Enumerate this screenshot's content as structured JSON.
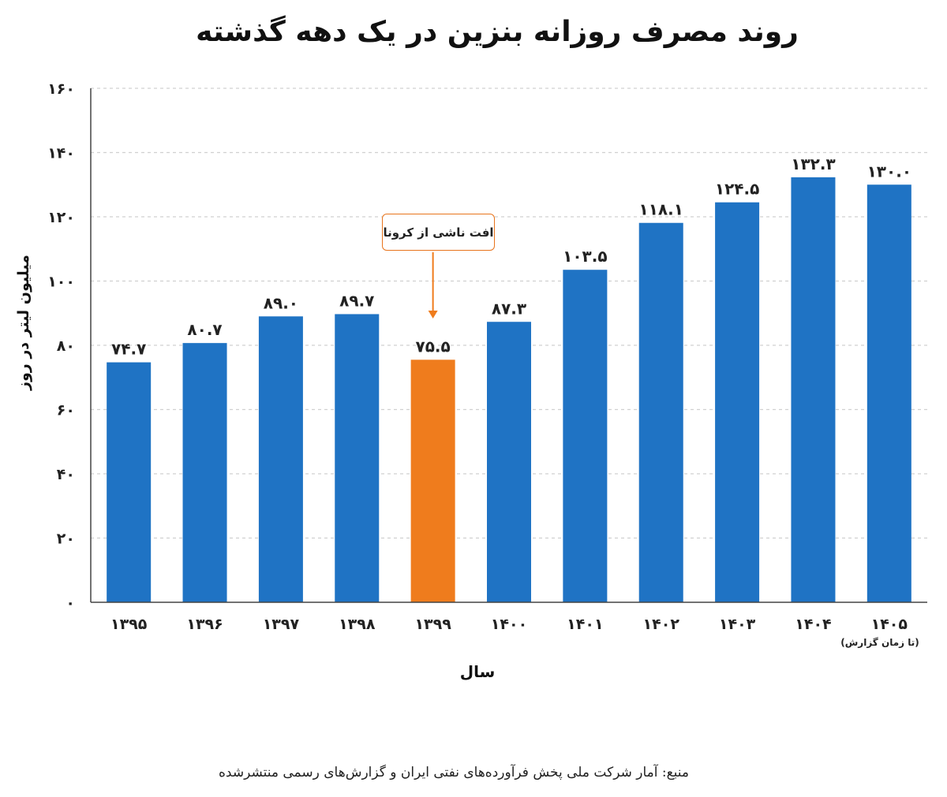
{
  "title": "روند مصرف روزانه بنزین در یک دهه گذشته",
  "source": "منبع: آمار شرکت ملی پخش فرآورده‌های نفتی ایران و گزارش‌های رسمی منتشرشده",
  "colors": {
    "bar": "#1f73c4",
    "highlight": "#ef7c1d",
    "grid": "#d0d0d0",
    "axis": "#444444"
  },
  "chart_data": {
    "type": "bar",
    "title": "روند مصرف روزانه بنزین در یک دهه گذشته",
    "xlabel": "سال",
    "ylabel": "میلیون لیتر در روز",
    "ylim": [
      0,
      160
    ],
    "yticks": [
      0,
      20,
      40,
      60,
      80,
      100,
      120,
      140,
      160
    ],
    "ytick_labels": [
      "۰",
      "۲۰",
      "۴۰",
      "۶۰",
      "۸۰",
      "۱۰۰",
      "۱۲۰",
      "۱۴۰",
      "۱۶۰"
    ],
    "grid": true,
    "categories": [
      "۱۳۹۵",
      "۱۳۹۶",
      "۱۳۹۷",
      "۱۳۹۸",
      "۱۳۹۹",
      "۱۴۰۰",
      "۱۴۰۱",
      "۱۴۰۲",
      "۱۴۰۳",
      "۱۴۰۴",
      "۱۴۰۵"
    ],
    "values": [
      74.7,
      80.7,
      89.0,
      89.7,
      75.5,
      87.3,
      103.5,
      118.1,
      124.5,
      132.3,
      130.0
    ],
    "value_labels": [
      "۷۴.۷",
      "۸۰.۷",
      "۸۹.۰",
      "۸۹.۷",
      "۷۵.۵",
      "۸۷.۳",
      "۱۰۳.۵",
      "۱۱۸.۱",
      "۱۲۴.۵",
      "۱۳۲.۳",
      "۱۳۰.۰"
    ],
    "highlight_index": 4,
    "annotation": "افت ناشی از کرونا",
    "last_category_note": "(تا زمان گزارش)"
  }
}
